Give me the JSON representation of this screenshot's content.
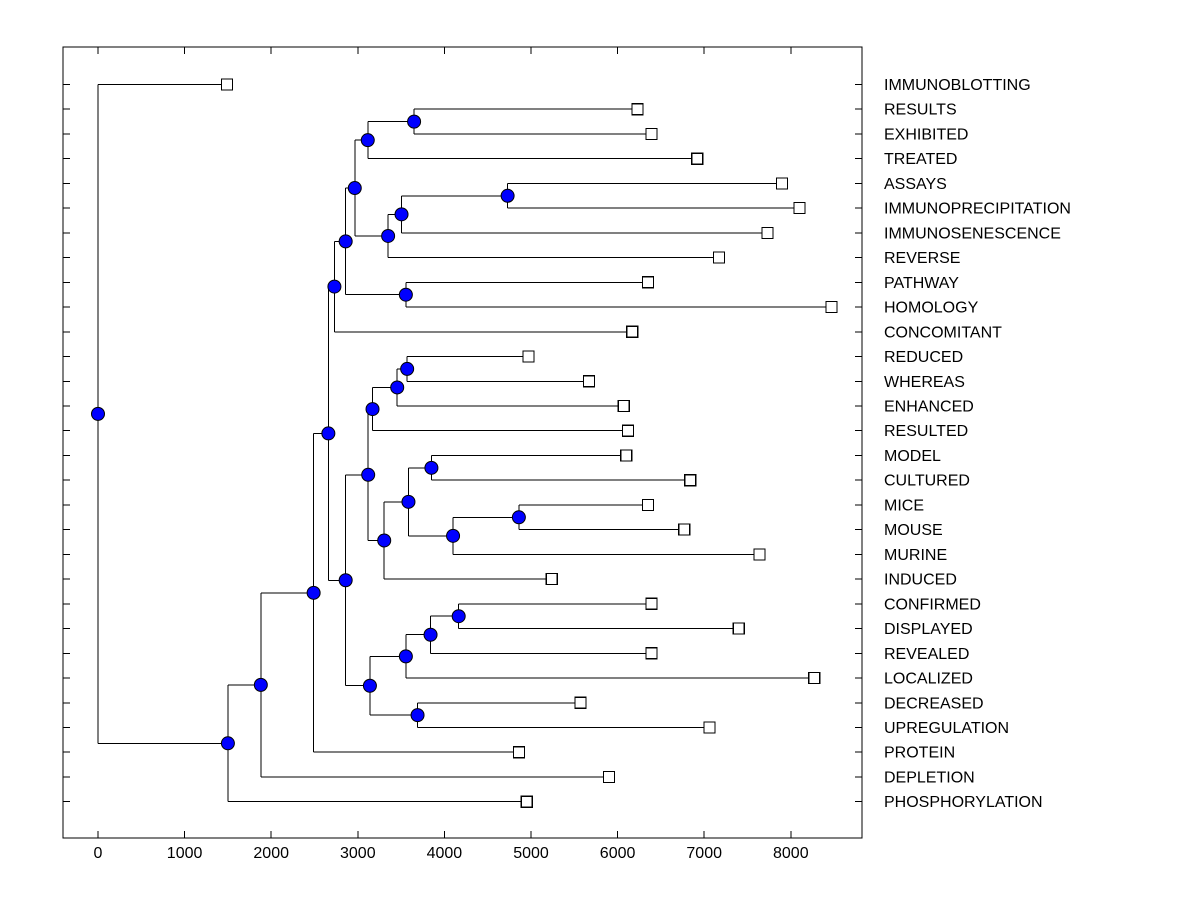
{
  "figure": {
    "background_color": "#FFFFFF",
    "plot_border_color": "#000000",
    "branch_line_color": "#000000",
    "node_marker_fill": "#0000FF",
    "node_marker_edge": "#000000",
    "leaf_marker_fill": "#FFFFFF",
    "leaf_marker_edge": "#000000"
  },
  "chart_data": {
    "type": "dendrogram",
    "subtype": "phylogenetic-tree",
    "orientation": "horizontal-root-left",
    "title": "",
    "xlabel": "",
    "ylabel": "",
    "grid": false,
    "legend": null,
    "x_range": [
      0,
      8830
    ],
    "x_ticks": [
      0,
      1000,
      2000,
      3000,
      4000,
      5000,
      6000,
      7000,
      8000
    ],
    "leaves": [
      {
        "label": "IMMUNOBLOTTING",
        "distance": 1490
      },
      {
        "label": "RESULTS",
        "distance": 6230
      },
      {
        "label": "EXHIBITED",
        "distance": 6390
      },
      {
        "label": "TREATED",
        "distance": 6920
      },
      {
        "label": "ASSAYS",
        "distance": 7900
      },
      {
        "label": "IMMUNOPRECIPITATION",
        "distance": 8100
      },
      {
        "label": "IMMUNOSENESCENCE",
        "distance": 7730
      },
      {
        "label": "REVERSE",
        "distance": 7170
      },
      {
        "label": "PATHWAY",
        "distance": 6350
      },
      {
        "label": "HOMOLOGY",
        "distance": 8470
      },
      {
        "label": "CONCOMITANT",
        "distance": 6170
      },
      {
        "label": "REDUCED",
        "distance": 4970
      },
      {
        "label": "WHEREAS",
        "distance": 5670
      },
      {
        "label": "ENHANCED",
        "distance": 6070
      },
      {
        "label": "RESULTED",
        "distance": 6120
      },
      {
        "label": "MODEL",
        "distance": 6100
      },
      {
        "label": "CULTURED",
        "distance": 6840
      },
      {
        "label": "MICE",
        "distance": 6350
      },
      {
        "label": "MOUSE",
        "distance": 6770
      },
      {
        "label": "MURINE",
        "distance": 7640
      },
      {
        "label": "INDUCED",
        "distance": 5240
      },
      {
        "label": "CONFIRMED",
        "distance": 6390
      },
      {
        "label": "DISPLAYED",
        "distance": 7400
      },
      {
        "label": "REVEALED",
        "distance": 6390
      },
      {
        "label": "LOCALIZED",
        "distance": 8270
      },
      {
        "label": "DECREASED",
        "distance": 5570
      },
      {
        "label": "UPREGULATION",
        "distance": 7060
      },
      {
        "label": "PROTEIN",
        "distance": 4860
      },
      {
        "label": "DEPLETION",
        "distance": 5900
      },
      {
        "label": "PHOSPHORYLATION",
        "distance": 4950
      }
    ],
    "internal_nodes": [
      {
        "id": "root",
        "distance": 0,
        "children": [
          "IMMUNOBLOTTING",
          "nT"
        ]
      },
      {
        "id": "nT",
        "distance": 1500,
        "children": [
          "nU",
          "PHOSPHORYLATION"
        ]
      },
      {
        "id": "nU",
        "distance": 1880,
        "children": [
          "nL",
          "DEPLETION"
        ]
      },
      {
        "id": "nL",
        "distance": 2490,
        "children": [
          "nJ",
          "PROTEIN"
        ]
      },
      {
        "id": "nJ",
        "distance": 2660,
        "children": [
          "nI",
          "nS"
        ]
      },
      {
        "id": "nI",
        "distance": 2730,
        "children": [
          "nG",
          "CONCOMITANT"
        ]
      },
      {
        "id": "nG",
        "distance": 2860,
        "children": [
          "nC",
          "nH"
        ]
      },
      {
        "id": "nC",
        "distance": 2965,
        "children": [
          "nB",
          "nF"
        ]
      },
      {
        "id": "nB",
        "distance": 3115,
        "children": [
          "nA",
          "TREATED"
        ]
      },
      {
        "id": "nA",
        "distance": 3650,
        "children": [
          "RESULTS",
          "EXHIBITED"
        ]
      },
      {
        "id": "nF",
        "distance": 3350,
        "children": [
          "nE",
          "REVERSE"
        ]
      },
      {
        "id": "nE",
        "distance": 3505,
        "children": [
          "nD",
          "IMMUNOSENESCENCE"
        ]
      },
      {
        "id": "nD",
        "distance": 4730,
        "children": [
          "ASSAYS",
          "IMMUNOPRECIPITATION"
        ]
      },
      {
        "id": "nH",
        "distance": 3555,
        "children": [
          "PATHWAY",
          "HOMOLOGY"
        ]
      },
      {
        "id": "nS",
        "distance": 2860,
        "children": [
          "nM",
          "nY"
        ]
      },
      {
        "id": "nM",
        "distance": 3120,
        "children": [
          "nK3",
          "nR"
        ]
      },
      {
        "id": "nK3",
        "distance": 3170,
        "children": [
          "nK2",
          "RESULTED"
        ]
      },
      {
        "id": "nK2",
        "distance": 3455,
        "children": [
          "nK1",
          "ENHANCED"
        ]
      },
      {
        "id": "nK1",
        "distance": 3570,
        "children": [
          "REDUCED",
          "WHEREAS"
        ]
      },
      {
        "id": "nR",
        "distance": 3305,
        "children": [
          "nO",
          "INDUCED"
        ]
      },
      {
        "id": "nO",
        "distance": 3585,
        "children": [
          "nN",
          "nQ"
        ]
      },
      {
        "id": "nN",
        "distance": 3850,
        "children": [
          "MODEL",
          "CULTURED"
        ]
      },
      {
        "id": "nQ",
        "distance": 4100,
        "children": [
          "nP",
          "MURINE"
        ]
      },
      {
        "id": "nP",
        "distance": 4860,
        "children": [
          "MICE",
          "MOUSE"
        ]
      },
      {
        "id": "nY",
        "distance": 3140,
        "children": [
          "nV",
          "nZ"
        ]
      },
      {
        "id": "nV",
        "distance": 3555,
        "children": [
          "nW",
          "LOCALIZED"
        ]
      },
      {
        "id": "nW",
        "distance": 3840,
        "children": [
          "nX",
          "REVEALED"
        ]
      },
      {
        "id": "nX",
        "distance": 4165,
        "children": [
          "CONFIRMED",
          "DISPLAYED"
        ]
      },
      {
        "id": "nZ",
        "distance": 3690,
        "children": [
          "DECREASED",
          "UPREGULATION"
        ]
      }
    ],
    "root_id": "root"
  }
}
